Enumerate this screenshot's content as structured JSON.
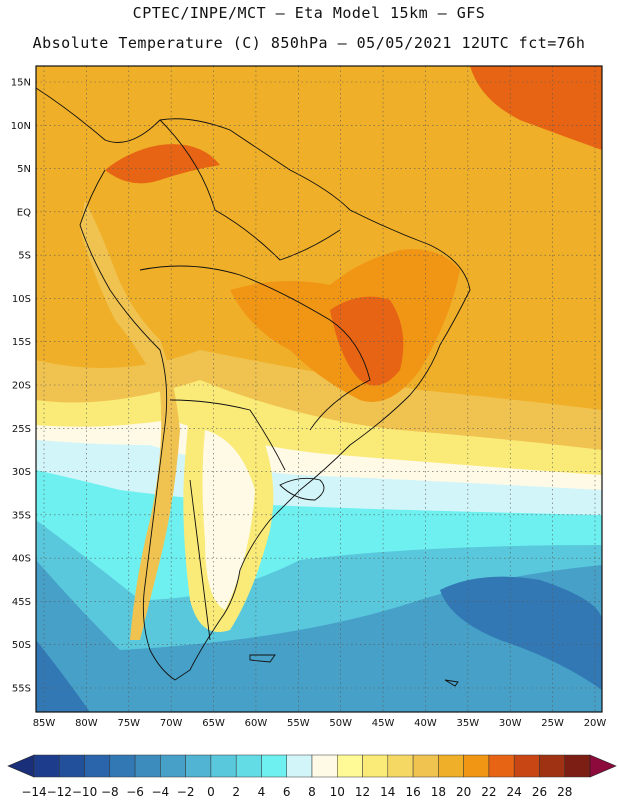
{
  "header": {
    "line1": "CPTEC/INPE/MCT –  Eta Model 15km – GFS",
    "line2": "Absolute Temperature (C) 850hPa – 05/05/2021 12UTC fct=76h"
  },
  "map": {
    "lat_labels": [
      "15N",
      "10N",
      "5N",
      "EQ",
      "5S",
      "10S",
      "15S",
      "20S",
      "25S",
      "30S",
      "35S",
      "40S",
      "45S",
      "50S",
      "55S"
    ],
    "lon_labels": [
      "85W",
      "80W",
      "75W",
      "70W",
      "65W",
      "60W",
      "55W",
      "50W",
      "45W",
      "40W",
      "35W",
      "30W",
      "25W",
      "20W"
    ]
  },
  "colorbar": {
    "labels": [
      "-14",
      "-12",
      "-10",
      "-8",
      "-6",
      "-4",
      "-2",
      "0",
      "2",
      "4",
      "6",
      "8",
      "10",
      "12",
      "14",
      "16",
      "18",
      "20",
      "22",
      "24",
      "26",
      "28"
    ],
    "colors": [
      "#1e3c8c",
      "#23509b",
      "#2a64aa",
      "#3278b4",
      "#3c8cbe",
      "#46a0c8",
      "#50b4d2",
      "#5ac8dc",
      "#64dce6",
      "#6ef0f0",
      "#d2f5fa",
      "#fffae6",
      "#fffa96",
      "#faeb78",
      "#f5d764",
      "#f0c350",
      "#f0af28",
      "#f09614",
      "#e66414",
      "#c84614",
      "#a03214",
      "#7d1e14"
    ],
    "low_arrow_color": "#1a2f7a",
    "high_arrow_color": "#8c0a3c"
  },
  "field_colors": {
    "ocean_north": "#f0af28",
    "warm": "#f09614",
    "hot": "#e66414",
    "veryhot": "#c84614",
    "mild": "#f0c350",
    "cool": "#faeb78",
    "pale": "#fffae6",
    "cyan_light": "#d2f5fa",
    "cyan": "#6ef0f0",
    "cyan_mid": "#5ac8dc",
    "blue_mid": "#46a0c8",
    "blue_deep": "#3278b4"
  }
}
